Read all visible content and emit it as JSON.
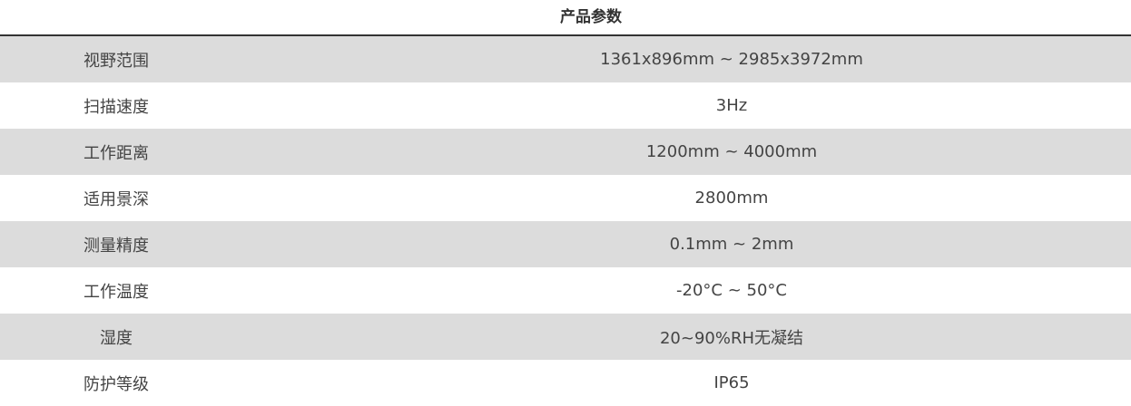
{
  "title": "产品参数",
  "rows": [
    {
      "label": "视野范围",
      "value": "1361x896mm ~ 2985x3972mm"
    },
    {
      "label": "扫描速度",
      "value": "3Hz"
    },
    {
      "label": "工作距离",
      "value": "1200mm ~ 4000mm"
    },
    {
      "label": "适用景深",
      "value": "2800mm"
    },
    {
      "label": "测量精度",
      "value": "0.1mm ~ 2mm"
    },
    {
      "label": "工作温度",
      "value": "-20°C ~ 50°C"
    },
    {
      "label": "湿度",
      "value": "20~90%RH无凝结"
    },
    {
      "label": "防护等级",
      "value": "IP65"
    }
  ]
}
